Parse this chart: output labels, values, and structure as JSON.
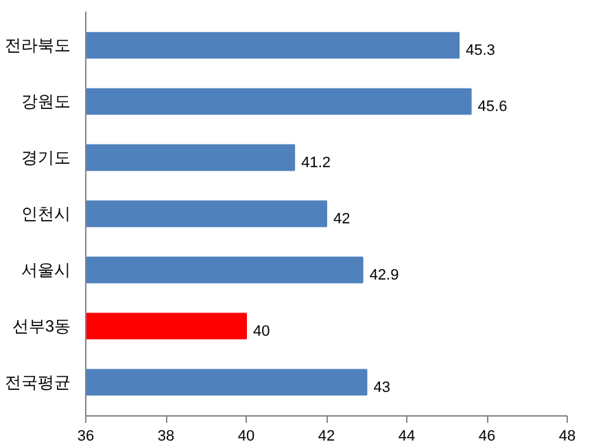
{
  "chart_data": {
    "type": "bar",
    "orientation": "horizontal",
    "categories": [
      "전라북도",
      "강원도",
      "경기도",
      "인천시",
      "서울시",
      "선부3동",
      "전국평균"
    ],
    "values": [
      45.3,
      45.6,
      41.2,
      42,
      42.9,
      40,
      43
    ],
    "colors": [
      "#4f81bd",
      "#4f81bd",
      "#4f81bd",
      "#4f81bd",
      "#4f81bd",
      "#ff0000",
      "#4f81bd"
    ],
    "xlim": [
      36,
      48
    ],
    "xticks": [
      36,
      38,
      40,
      42,
      44,
      46,
      48
    ],
    "data_labels": true,
    "grid": false
  }
}
